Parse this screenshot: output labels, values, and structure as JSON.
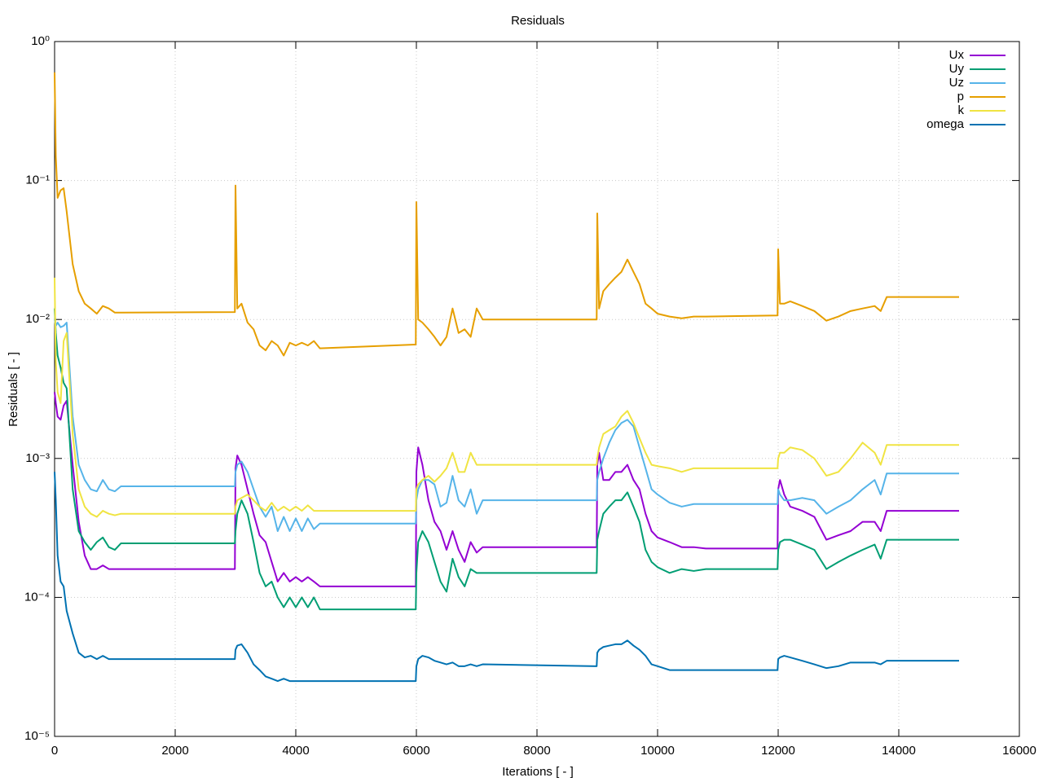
{
  "chart_data": {
    "type": "line",
    "title": "Residuals",
    "x_label": "Iterations [ - ]",
    "y_label": "Residuals [ - ]",
    "logscale": "y",
    "grid": true,
    "legend": "top-right",
    "xlim": [
      0,
      16000
    ],
    "xticks": [
      0,
      2000,
      4000,
      6000,
      8000,
      10000,
      12000,
      14000,
      16000
    ],
    "ylim": [
      1e-05,
      1
    ],
    "yticks": [
      {
        "value": 1,
        "label": "10⁰"
      },
      {
        "value": 0.1,
        "label": "10⁻¹"
      },
      {
        "value": 0.01,
        "label": "10⁻²"
      },
      {
        "value": 0.001,
        "label": "10⁻³"
      },
      {
        "value": 0.0001,
        "label": "10⁻⁴"
      },
      {
        "value": 1e-05,
        "label": "10⁻⁵"
      }
    ],
    "x": [
      0,
      20,
      50,
      100,
      150,
      200,
      300,
      400,
      500,
      600,
      700,
      800,
      900,
      1000,
      1100,
      2990,
      3000,
      3030,
      3100,
      3200,
      3300,
      3400,
      3500,
      3600,
      3700,
      3800,
      3900,
      4000,
      4100,
      4200,
      4300,
      4400,
      5990,
      6000,
      6030,
      6100,
      6200,
      6300,
      6400,
      6500,
      6600,
      6700,
      6800,
      6900,
      7000,
      7100,
      8990,
      9000,
      9030,
      9100,
      9200,
      9300,
      9400,
      9500,
      9600,
      9700,
      9800,
      9900,
      10000,
      10200,
      10400,
      10600,
      10800,
      11990,
      12000,
      12030,
      12100,
      12200,
      12400,
      12600,
      12800,
      13000,
      13200,
      13400,
      13600,
      13700,
      13800,
      15000
    ],
    "series": [
      {
        "name": "Ux",
        "color": "#9400d3",
        "values": [
          0.003,
          0.0025,
          0.002,
          0.0019,
          0.0024,
          0.0026,
          0.0009,
          0.00035,
          0.0002,
          0.00016,
          0.00016,
          0.00017,
          0.00016,
          0.00016,
          0.00016,
          0.00016,
          0.00085,
          0.00105,
          0.0009,
          0.0006,
          0.0004,
          0.00028,
          0.00025,
          0.00018,
          0.00013,
          0.00015,
          0.00013,
          0.00014,
          0.00013,
          0.00014,
          0.00013,
          0.00012,
          0.00012,
          0.0008,
          0.0012,
          0.0009,
          0.0005,
          0.00035,
          0.0003,
          0.00022,
          0.0003,
          0.00022,
          0.00018,
          0.00025,
          0.00021,
          0.00023,
          0.00023,
          0.0009,
          0.0011,
          0.0007,
          0.0007,
          0.0008,
          0.0008,
          0.0009,
          0.0007,
          0.0006,
          0.0004,
          0.0003,
          0.00027,
          0.00025,
          0.00023,
          0.00023,
          0.000225,
          0.000225,
          0.0006,
          0.0007,
          0.00055,
          0.00045,
          0.00042,
          0.00038,
          0.00026,
          0.00028,
          0.0003,
          0.00035,
          0.00035,
          0.0003,
          0.00042,
          0.00042
        ]
      },
      {
        "name": "Uy",
        "color": "#009e73",
        "values": [
          0.012,
          0.008,
          0.0055,
          0.0045,
          0.0035,
          0.0032,
          0.0006,
          0.0003,
          0.00025,
          0.00022,
          0.00025,
          0.00027,
          0.00023,
          0.00022,
          0.000245,
          0.000245,
          0.0003,
          0.0004,
          0.0005,
          0.0004,
          0.00025,
          0.00015,
          0.00012,
          0.00013,
          0.0001,
          8.5e-05,
          0.0001,
          8.5e-05,
          0.0001,
          8.5e-05,
          0.0001,
          8.2e-05,
          8.2e-05,
          0.00015,
          0.00025,
          0.0003,
          0.00025,
          0.00018,
          0.00013,
          0.00011,
          0.00019,
          0.00014,
          0.00012,
          0.00016,
          0.00015,
          0.00015,
          0.00015,
          0.00026,
          0.0003,
          0.0004,
          0.00045,
          0.0005,
          0.0005,
          0.00057,
          0.00045,
          0.00035,
          0.00022,
          0.00018,
          0.000165,
          0.00015,
          0.00016,
          0.000155,
          0.00016,
          0.00016,
          0.00022,
          0.00025,
          0.00026,
          0.00026,
          0.00024,
          0.00022,
          0.00016,
          0.00018,
          0.0002,
          0.00022,
          0.00024,
          0.00019,
          0.00026,
          0.00026
        ]
      },
      {
        "name": "Uz",
        "color": "#56b4e9",
        "values": [
          0.01,
          0.009,
          0.0095,
          0.0088,
          0.009,
          0.0095,
          0.002,
          0.0009,
          0.0007,
          0.0006,
          0.00058,
          0.0007,
          0.0006,
          0.00058,
          0.00063,
          0.00063,
          0.0008,
          0.0009,
          0.00095,
          0.0008,
          0.0006,
          0.00045,
          0.00038,
          0.00045,
          0.0003,
          0.00038,
          0.0003,
          0.00037,
          0.0003,
          0.00037,
          0.00031,
          0.00034,
          0.00034,
          0.0005,
          0.0006,
          0.0007,
          0.0007,
          0.00065,
          0.00045,
          0.00048,
          0.00075,
          0.0005,
          0.00045,
          0.0006,
          0.0004,
          0.0005,
          0.0005,
          0.0007,
          0.0008,
          0.001,
          0.0013,
          0.0016,
          0.0018,
          0.0019,
          0.0017,
          0.0012,
          0.00085,
          0.0006,
          0.00055,
          0.00048,
          0.00045,
          0.00047,
          0.00047,
          0.00047,
          0.0006,
          0.00055,
          0.0005,
          0.0005,
          0.00052,
          0.0005,
          0.0004,
          0.00045,
          0.0005,
          0.0006,
          0.0007,
          0.00055,
          0.00078,
          0.00078
        ]
      },
      {
        "name": "p",
        "color": "#e69f00",
        "values": [
          0.6,
          0.15,
          0.075,
          0.085,
          0.088,
          0.06,
          0.025,
          0.016,
          0.013,
          0.012,
          0.011,
          0.0125,
          0.012,
          0.0112,
          0.0112,
          0.0113,
          0.092,
          0.012,
          0.013,
          0.0095,
          0.0085,
          0.0065,
          0.006,
          0.007,
          0.0065,
          0.0055,
          0.0068,
          0.0065,
          0.0068,
          0.0065,
          0.007,
          0.0062,
          0.0066,
          0.07,
          0.01,
          0.0095,
          0.0085,
          0.0075,
          0.0065,
          0.0075,
          0.012,
          0.008,
          0.0085,
          0.0075,
          0.012,
          0.01,
          0.01,
          0.058,
          0.012,
          0.016,
          0.018,
          0.02,
          0.022,
          0.027,
          0.022,
          0.018,
          0.013,
          0.012,
          0.011,
          0.0105,
          0.0102,
          0.0105,
          0.0105,
          0.0107,
          0.032,
          0.013,
          0.013,
          0.0135,
          0.0125,
          0.0115,
          0.0098,
          0.0105,
          0.0115,
          0.012,
          0.0125,
          0.0115,
          0.0145,
          0.0145
        ]
      },
      {
        "name": "k",
        "color": "#f0e442",
        "values": [
          0.02,
          0.005,
          0.003,
          0.0025,
          0.007,
          0.008,
          0.0015,
          0.0006,
          0.00045,
          0.0004,
          0.00038,
          0.00042,
          0.0004,
          0.00039,
          0.0004,
          0.0004,
          0.00045,
          0.0005,
          0.00052,
          0.00055,
          0.0005,
          0.00045,
          0.00042,
          0.00048,
          0.00042,
          0.00045,
          0.00042,
          0.00045,
          0.00042,
          0.00046,
          0.00042,
          0.00042,
          0.00042,
          0.0006,
          0.00065,
          0.0007,
          0.00075,
          0.00068,
          0.00075,
          0.00085,
          0.0011,
          0.0008,
          0.0008,
          0.0011,
          0.0009,
          0.0009,
          0.0009,
          0.001,
          0.0012,
          0.0015,
          0.0016,
          0.0017,
          0.002,
          0.0022,
          0.0018,
          0.0014,
          0.0011,
          0.0009,
          0.00088,
          0.00085,
          0.0008,
          0.00085,
          0.00085,
          0.00085,
          0.001,
          0.0011,
          0.0011,
          0.0012,
          0.00115,
          0.001,
          0.00075,
          0.0008,
          0.001,
          0.0013,
          0.0011,
          0.0009,
          0.00125,
          0.00125
        ]
      },
      {
        "name": "omega",
        "color": "#0072b2",
        "values": [
          0.0008,
          0.0005,
          0.0002,
          0.00013,
          0.00012,
          8e-05,
          5.5e-05,
          4e-05,
          3.7e-05,
          3.8e-05,
          3.6e-05,
          3.8e-05,
          3.6e-05,
          3.6e-05,
          3.6e-05,
          3.6e-05,
          4.2e-05,
          4.5e-05,
          4.6e-05,
          4e-05,
          3.3e-05,
          3e-05,
          2.7e-05,
          2.6e-05,
          2.5e-05,
          2.6e-05,
          2.5e-05,
          2.5e-05,
          2.5e-05,
          2.5e-05,
          2.5e-05,
          2.5e-05,
          2.5e-05,
          3.2e-05,
          3.6e-05,
          3.8e-05,
          3.7e-05,
          3.5e-05,
          3.4e-05,
          3.3e-05,
          3.4e-05,
          3.2e-05,
          3.2e-05,
          3.3e-05,
          3.2e-05,
          3.3e-05,
          3.2e-05,
          4e-05,
          4.2e-05,
          4.4e-05,
          4.5e-05,
          4.6e-05,
          4.6e-05,
          4.9e-05,
          4.5e-05,
          4.2e-05,
          3.8e-05,
          3.3e-05,
          3.2e-05,
          3e-05,
          3e-05,
          3e-05,
          3e-05,
          3e-05,
          3.6e-05,
          3.7e-05,
          3.8e-05,
          3.7e-05,
          3.5e-05,
          3.3e-05,
          3.1e-05,
          3.2e-05,
          3.4e-05,
          3.4e-05,
          3.4e-05,
          3.3e-05,
          3.5e-05,
          3.5e-05
        ]
      }
    ]
  }
}
